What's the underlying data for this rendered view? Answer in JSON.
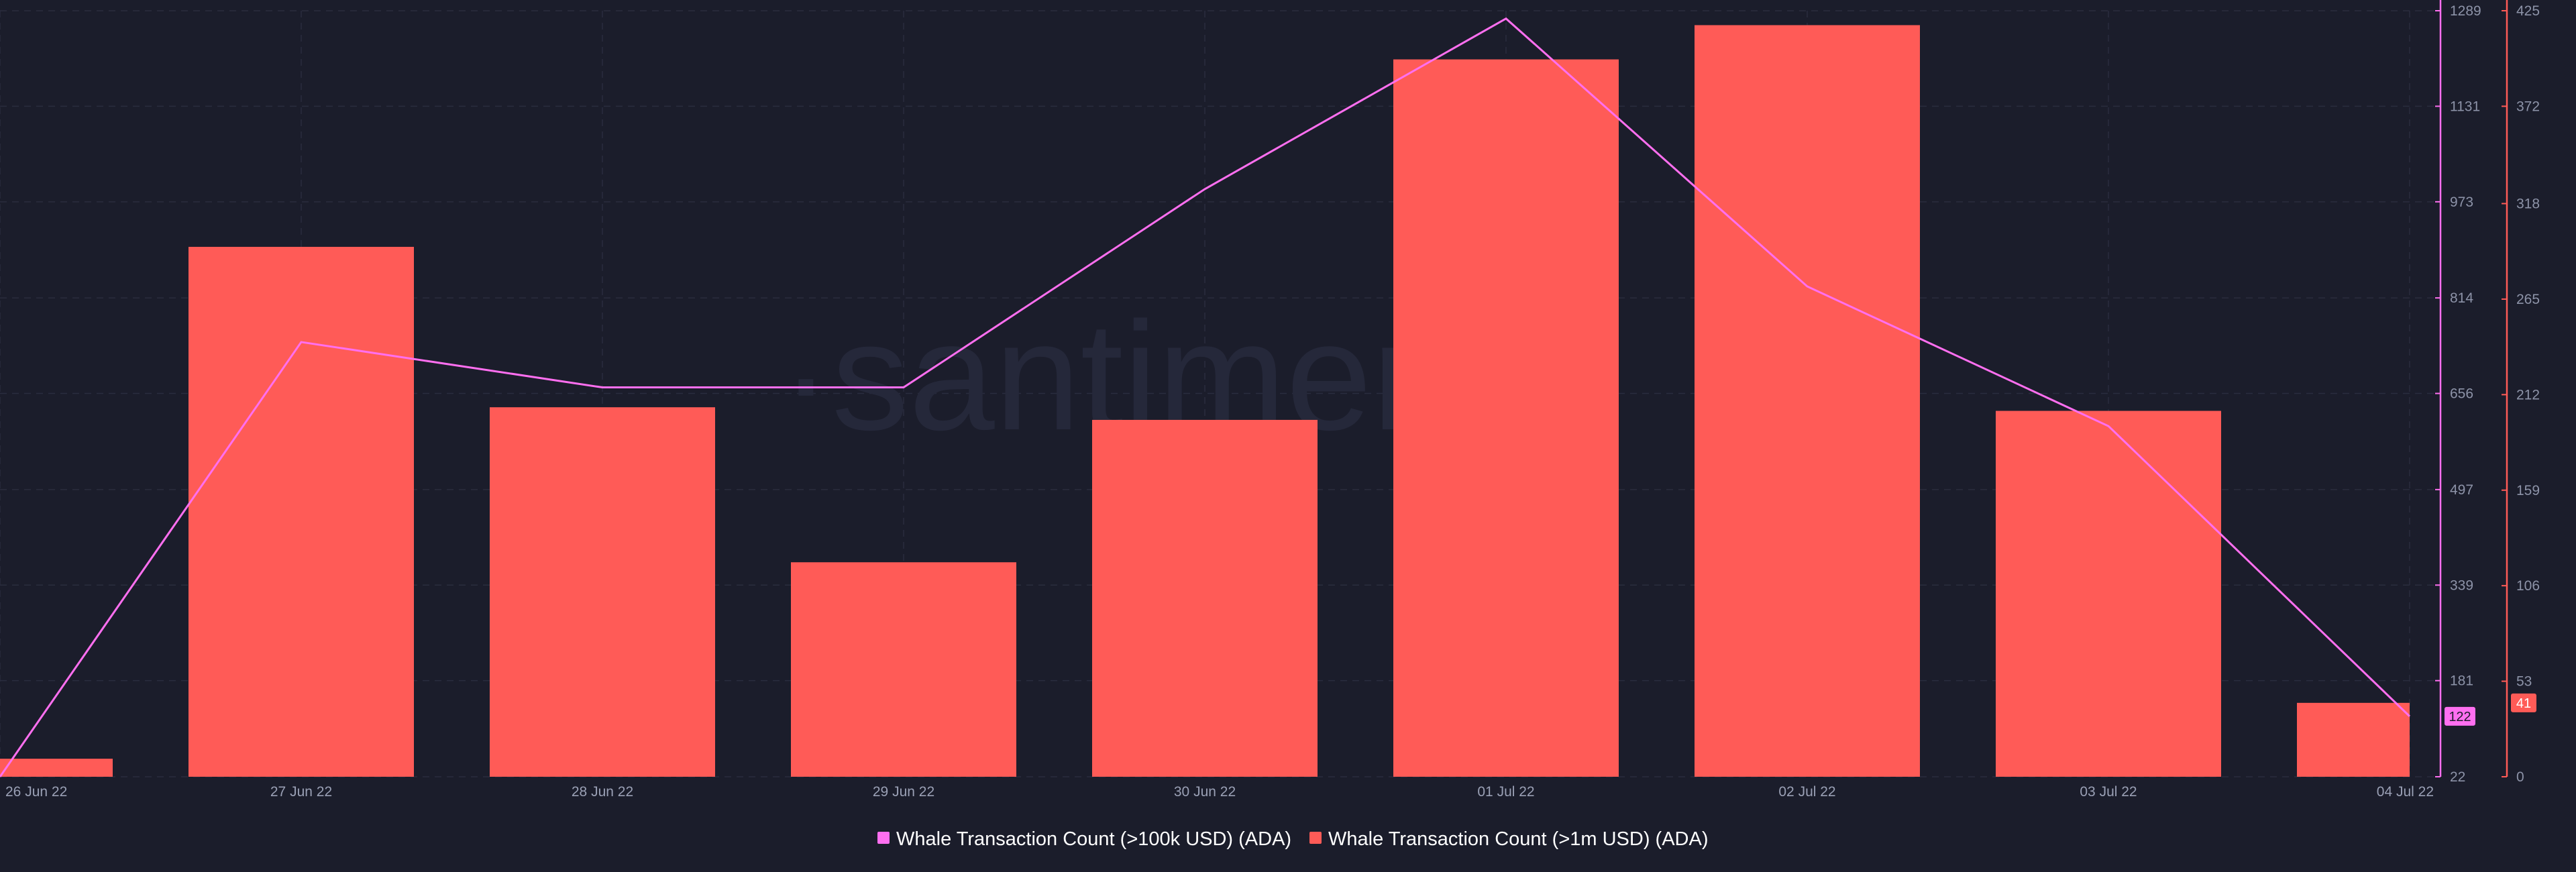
{
  "chart_data": {
    "type": "bar+line",
    "categories": [
      "26 Jun 22",
      "27 Jun 22",
      "28 Jun 22",
      "29 Jun 22",
      "30 Jun 22",
      "01 Jul 22",
      "02 Jul 22",
      "03 Jul 22",
      "04 Jul 22"
    ],
    "series": [
      {
        "name": "Whale Transaction Count (>100k USD) (ADA)",
        "type": "line",
        "color": "#ff6ff0",
        "axis": "left",
        "values": [
          22,
          741,
          666,
          666,
          994,
          1276,
          833,
          602,
          122
        ]
      },
      {
        "name": "Whale Transaction Count (>1m USD) (ADA)",
        "type": "bar",
        "color": "#ff5b57",
        "axis": "right",
        "values": [
          10,
          294,
          205,
          119,
          198,
          398,
          417,
          203,
          41
        ]
      }
    ],
    "y_left": {
      "range": [
        22,
        1289
      ],
      "ticks": [
        "22",
        "181",
        "339",
        "497",
        "656",
        "814",
        "973",
        "1131",
        "1289"
      ]
    },
    "y_right": {
      "range": [
        0,
        425
      ],
      "ticks": [
        "0",
        "53",
        "106",
        "159",
        "212",
        "265",
        "318",
        "372",
        "425"
      ]
    },
    "last_value_labels": {
      "left": "122",
      "right": "41"
    },
    "watermark": "·santiment",
    "grid": true,
    "legend_position": "bottom-center"
  }
}
